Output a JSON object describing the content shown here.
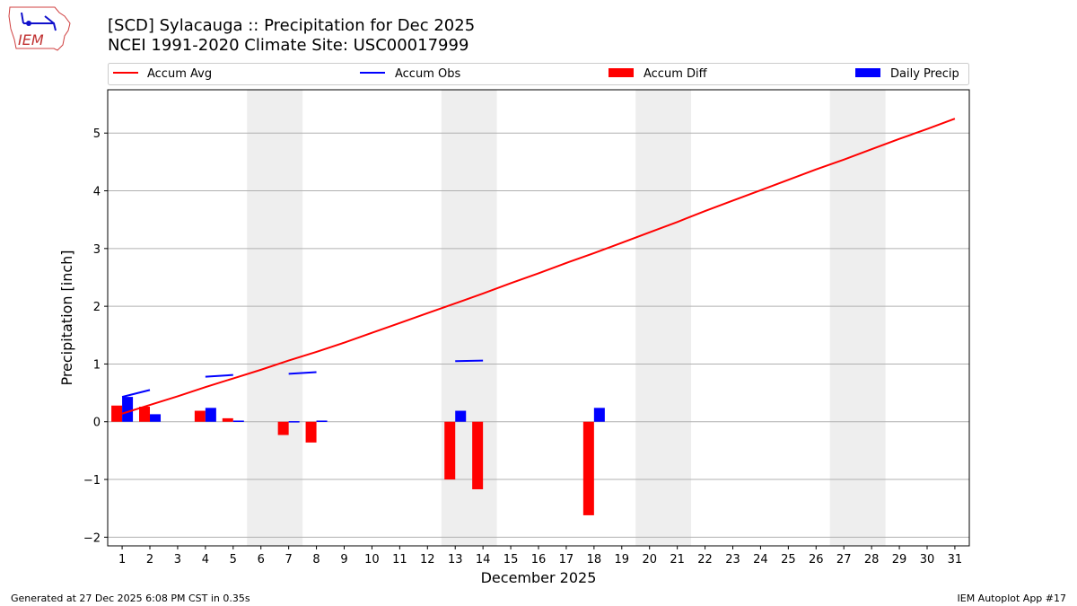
{
  "logo_text": "IEM",
  "footer": {
    "left": "Generated at 27 Dec 2025 6:08 PM CST in 0.35s",
    "right": "IEM Autoplot App #17"
  },
  "chart_data": {
    "type": "bar",
    "title": "[SCD] Sylacauga :: Precipitation for Dec 2025",
    "subtitle": "NCEI 1991-2020 Climate Site: USC00017999",
    "xlabel": "December 2025",
    "ylabel": "Precipitation [inch]",
    "xlim": [
      0.48,
      31.52
    ],
    "ylim": [
      -2.15,
      5.75
    ],
    "yticks": [
      -2,
      -1,
      0,
      1,
      2,
      3,
      4,
      5
    ],
    "ytick_labels": [
      "−2",
      "−1",
      "0",
      "1",
      "2",
      "3",
      "4",
      "5"
    ],
    "xticks": [
      1,
      2,
      3,
      4,
      5,
      6,
      7,
      8,
      9,
      10,
      11,
      12,
      13,
      14,
      15,
      16,
      17,
      18,
      19,
      20,
      21,
      22,
      23,
      24,
      25,
      26,
      27,
      28,
      29,
      30,
      31
    ],
    "grid": "horizontal",
    "legend_position": "top",
    "weekend_shading": [
      [
        6,
        7
      ],
      [
        13,
        14
      ],
      [
        20,
        21
      ],
      [
        27,
        28
      ]
    ],
    "colors": {
      "avg": "#ff0000",
      "obs": "#0000ff",
      "diff": "#ff0000",
      "daily": "#0000ff",
      "weekend": "#eeeeee"
    },
    "series": [
      {
        "name": "Accum Avg",
        "kind": "line",
        "x": [
          1,
          2,
          3,
          4,
          5,
          6,
          7,
          8,
          9,
          10,
          11,
          12,
          13,
          14,
          15,
          16,
          17,
          18,
          19,
          20,
          21,
          22,
          23,
          24,
          25,
          26,
          27,
          28,
          29,
          30,
          31
        ],
        "values": [
          0.14,
          0.29,
          0.44,
          0.6,
          0.75,
          0.9,
          1.06,
          1.21,
          1.37,
          1.54,
          1.71,
          1.88,
          2.05,
          2.22,
          2.4,
          2.57,
          2.75,
          2.92,
          3.1,
          3.28,
          3.46,
          3.65,
          3.83,
          4.01,
          4.19,
          4.37,
          4.54,
          4.72,
          4.9,
          5.07,
          5.25
        ]
      },
      {
        "name": "Accum Obs",
        "kind": "segments",
        "segments": [
          [
            [
              1,
              0.43
            ],
            [
              2,
              0.55
            ]
          ],
          [
            [
              4,
              0.78
            ],
            [
              5,
              0.81
            ]
          ],
          [
            [
              7,
              0.83
            ],
            [
              8,
              0.86
            ]
          ],
          [
            [
              13,
              1.05
            ],
            [
              14,
              1.06
            ]
          ]
        ]
      },
      {
        "name": "Accum Diff",
        "kind": "bar",
        "x": [
          1,
          2,
          4,
          5,
          7,
          8,
          13,
          14,
          18
        ],
        "values": [
          0.28,
          0.26,
          0.19,
          0.06,
          -0.23,
          -0.36,
          -1.0,
          -1.17,
          -1.62
        ]
      },
      {
        "name": "Daily Precip",
        "kind": "bar",
        "x": [
          1,
          2,
          4,
          5,
          7,
          8,
          13,
          18
        ],
        "values": [
          0.43,
          0.13,
          0.24,
          0.02,
          0.01,
          0.02,
          0.19,
          0.24
        ]
      }
    ]
  }
}
